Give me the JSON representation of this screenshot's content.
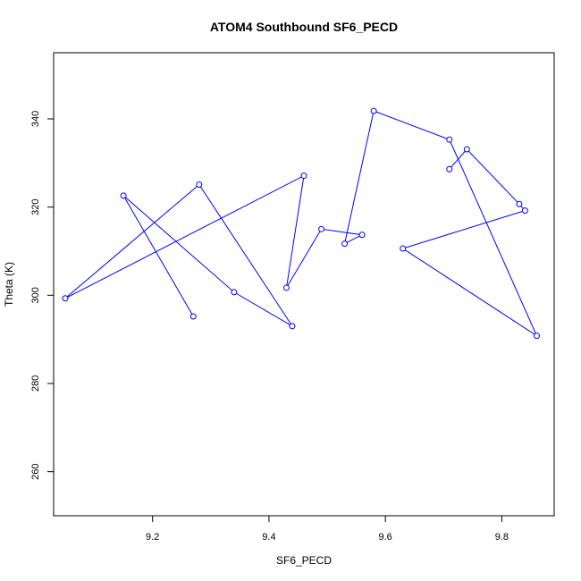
{
  "chart_data": {
    "type": "line",
    "title": "ATOM4 Southbound SF6_PECD",
    "xlabel": "SF6_PECD",
    "ylabel": "Theta (K)",
    "xlim": [
      9.03,
      9.89
    ],
    "ylim": [
      250,
      355
    ],
    "xticks": [
      9.2,
      9.4,
      9.6,
      9.8
    ],
    "yticks": [
      260,
      280,
      300,
      320,
      340
    ],
    "xtick_labels": [
      "9.2",
      "9.4",
      "9.6",
      "9.8"
    ],
    "ytick_labels": [
      "260",
      "280",
      "300",
      "320",
      "340"
    ],
    "grid": false,
    "series": [
      {
        "color": "#0000ff",
        "marker": "open-circle",
        "points": [
          {
            "x": 9.27,
            "y": 295.2
          },
          {
            "x": 9.15,
            "y": 322.6
          },
          {
            "x": 9.34,
            "y": 300.7
          },
          {
            "x": 9.44,
            "y": 293.0
          },
          {
            "x": 9.28,
            "y": 325.1
          },
          {
            "x": 9.05,
            "y": 299.3
          },
          {
            "x": 9.46,
            "y": 327.1
          },
          {
            "x": 9.43,
            "y": 301.7
          },
          {
            "x": 9.49,
            "y": 315.0
          },
          {
            "x": 9.56,
            "y": 313.7
          },
          {
            "x": 9.53,
            "y": 311.7
          },
          {
            "x": 9.58,
            "y": 341.8
          },
          {
            "x": 9.71,
            "y": 335.3
          },
          {
            "x": 9.86,
            "y": 290.8
          },
          {
            "x": 9.63,
            "y": 310.6
          },
          {
            "x": 9.84,
            "y": 319.2
          },
          {
            "x": 9.83,
            "y": 320.7
          },
          {
            "x": 9.74,
            "y": 333.1
          },
          {
            "x": 9.71,
            "y": 328.6
          }
        ]
      }
    ]
  }
}
